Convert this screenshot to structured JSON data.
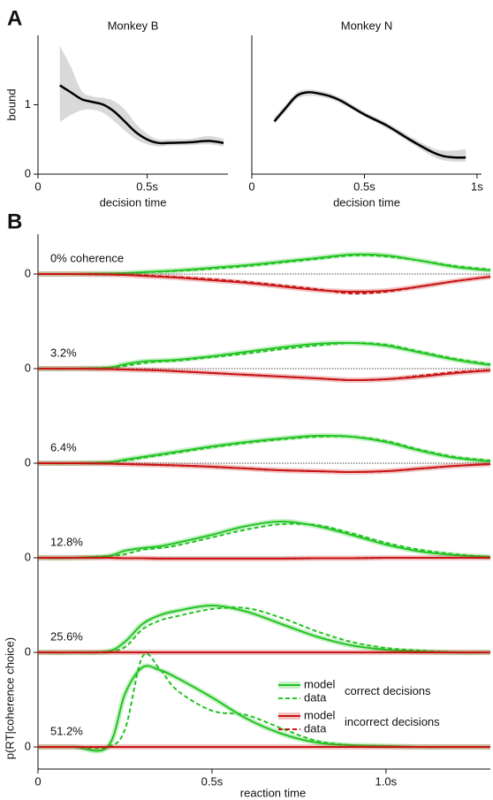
{
  "chart_data": [
    {
      "type": "line",
      "panel": "A",
      "title": "Monkey B",
      "xlabel": "decision time",
      "ylabel": "bound",
      "x": [
        0.1,
        0.15,
        0.2,
        0.25,
        0.3,
        0.35,
        0.4,
        0.45,
        0.5,
        0.55,
        0.6,
        0.7,
        0.78,
        0.85
      ],
      "values": [
        1.28,
        1.18,
        1.08,
        1.04,
        1.0,
        0.9,
        0.75,
        0.6,
        0.5,
        0.45,
        0.45,
        0.46,
        0.48,
        0.45
      ],
      "band_lower": [
        0.75,
        0.85,
        0.92,
        0.93,
        0.88,
        0.76,
        0.62,
        0.5,
        0.43,
        0.4,
        0.41,
        0.42,
        0.43,
        0.4
      ],
      "band_upper": [
        1.85,
        1.55,
        1.2,
        1.12,
        1.1,
        1.05,
        0.92,
        0.72,
        0.58,
        0.5,
        0.5,
        0.51,
        0.55,
        0.51
      ],
      "color": "#000000",
      "band_color": "#d9d9d9",
      "xlim": [
        0,
        0.87
      ],
      "ylim": [
        0,
        2
      ],
      "xticks": [
        0,
        {
          "value": 0.5,
          "label": "0.5s"
        }
      ],
      "yticks": [
        0,
        1
      ]
    },
    {
      "type": "line",
      "title": "Monkey N",
      "xlabel": "decision time",
      "x": [
        0.1,
        0.15,
        0.2,
        0.25,
        0.3,
        0.35,
        0.4,
        0.5,
        0.6,
        0.7,
        0.8,
        0.85,
        0.9,
        0.95
      ],
      "values": [
        0.76,
        0.95,
        1.13,
        1.18,
        1.16,
        1.12,
        1.05,
        0.86,
        0.7,
        0.5,
        0.32,
        0.26,
        0.24,
        0.24
      ],
      "band_lower": [
        0.72,
        0.9,
        1.08,
        1.13,
        1.12,
        1.08,
        1.01,
        0.83,
        0.66,
        0.46,
        0.26,
        0.2,
        0.18,
        0.18
      ],
      "band_upper": [
        0.82,
        1.0,
        1.18,
        1.22,
        1.2,
        1.16,
        1.09,
        0.9,
        0.74,
        0.55,
        0.38,
        0.34,
        0.34,
        0.36
      ],
      "color": "#000000",
      "band_color": "#d9d9d9",
      "xlim": [
        0,
        1.02
      ],
      "ylim": [
        0,
        2
      ],
      "xticks": [
        0,
        {
          "value": 0.5,
          "label": "0.5s"
        },
        {
          "value": 1,
          "label": "1s"
        }
      ],
      "yticks": []
    },
    {
      "type": "rt-stack",
      "panel": "B",
      "xlabel": "reaction time",
      "ylabel": "p(RT|coherence choice)",
      "x": [
        0,
        0.1,
        0.2,
        0.25,
        0.3,
        0.35,
        0.4,
        0.5,
        0.6,
        0.7,
        0.8,
        0.9,
        1.0,
        1.1,
        1.2,
        1.3
      ],
      "xlim": [
        0,
        1.3
      ],
      "xticks": [
        0,
        {
          "value": 0.5,
          "label": "0.5s"
        },
        {
          "value": 1,
          "label": "1.0s"
        }
      ],
      "yticks": [
        0
      ],
      "groups": [
        {
          "label": "correct decisions",
          "color": "#22c422",
          "model": "model",
          "data": "data"
        },
        {
          "label": "incorrect decisions",
          "color": "#c81414",
          "model": "model",
          "data": "data"
        }
      ],
      "rows": [
        {
          "label": "0% coherence",
          "correct_model": [
            0,
            0,
            0.05,
            0.1,
            0.2,
            0.3,
            0.4,
            0.7,
            1.0,
            1.4,
            1.8,
            2.2,
            2.1,
            1.5,
            0.8,
            0.4
          ],
          "correct_data": [
            0,
            0,
            0.05,
            0.1,
            0.2,
            0.25,
            0.35,
            0.6,
            0.9,
            1.3,
            1.7,
            2.1,
            2.0,
            1.5,
            0.9,
            0.5
          ],
          "incorrect_model": [
            0,
            0,
            0.05,
            0.1,
            0.2,
            0.3,
            0.4,
            0.7,
            1.0,
            1.4,
            1.8,
            2.0,
            1.9,
            1.4,
            0.8,
            0.3
          ],
          "incorrect_data": [
            0,
            0,
            0.05,
            0.1,
            0.15,
            0.25,
            0.35,
            0.6,
            0.9,
            1.3,
            1.7,
            2.2,
            2.0,
            1.4,
            0.8,
            0.3
          ]
        },
        {
          "label": "3.2%",
          "correct_model": [
            0,
            0,
            0.1,
            0.5,
            0.8,
            0.9,
            1.0,
            1.4,
            1.9,
            2.4,
            2.8,
            2.9,
            2.6,
            1.8,
            1.0,
            0.4
          ],
          "correct_data": [
            0,
            0,
            0.1,
            0.3,
            0.6,
            0.8,
            0.9,
            1.3,
            1.7,
            2.2,
            2.6,
            2.9,
            2.7,
            1.9,
            1.1,
            0.5
          ],
          "incorrect_model": [
            0,
            0,
            0.05,
            0.1,
            0.15,
            0.2,
            0.3,
            0.5,
            0.7,
            0.9,
            1.1,
            1.3,
            1.2,
            0.9,
            0.5,
            0.2
          ],
          "incorrect_data": [
            0,
            0,
            0.05,
            0.1,
            0.15,
            0.2,
            0.3,
            0.5,
            0.7,
            0.9,
            1.1,
            1.3,
            1.2,
            0.8,
            0.4,
            0.2
          ]
        },
        {
          "label": "6.4%",
          "correct_model": [
            0,
            0,
            0.1,
            0.4,
            0.7,
            1.0,
            1.3,
            1.9,
            2.4,
            2.8,
            3.1,
            3.0,
            2.4,
            1.4,
            0.6,
            0.2
          ],
          "correct_data": [
            0,
            0,
            0.1,
            0.3,
            0.6,
            0.9,
            1.2,
            1.8,
            2.3,
            2.7,
            3.0,
            3.0,
            2.5,
            1.5,
            0.7,
            0.3
          ],
          "incorrect_model": [
            0,
            0,
            0.05,
            0.1,
            0.15,
            0.2,
            0.25,
            0.4,
            0.6,
            0.8,
            0.9,
            1.0,
            0.9,
            0.6,
            0.3,
            0.1
          ],
          "incorrect_data": [
            0,
            0,
            0.05,
            0.1,
            0.15,
            0.2,
            0.25,
            0.4,
            0.6,
            0.8,
            0.9,
            1.0,
            0.9,
            0.6,
            0.3,
            0.1
          ]
        },
        {
          "label": "12.8%",
          "correct_model": [
            0,
            0,
            0.2,
            0.8,
            1.1,
            1.3,
            1.7,
            2.6,
            3.6,
            4.1,
            3.6,
            2.6,
            1.5,
            0.7,
            0.3,
            0.1
          ],
          "correct_data": [
            0,
            0,
            0.2,
            0.4,
            0.9,
            1.1,
            1.4,
            2.3,
            3.2,
            3.8,
            3.7,
            2.8,
            1.7,
            0.9,
            0.4,
            0.1
          ],
          "incorrect_model": [
            0,
            0,
            0,
            0.05,
            0.05,
            0.1,
            0.1,
            0.1,
            0.1,
            0.1,
            0.05,
            0.05,
            0,
            0,
            0,
            0
          ],
          "incorrect_data": [
            0,
            0,
            0,
            0.05,
            0.05,
            0.1,
            0.1,
            0.1,
            0.1,
            0.1,
            0.05,
            0.05,
            0,
            0,
            0,
            0
          ]
        },
        {
          "label": "25.6%",
          "correct_model": [
            0,
            0,
            0.1,
            1.2,
            3.2,
            4.2,
            4.7,
            5.3,
            4.6,
            3.2,
            1.8,
            0.8,
            0.3,
            0.1,
            0,
            0
          ],
          "correct_data": [
            0,
            0,
            0.1,
            0.6,
            2.6,
            3.6,
            4.1,
            4.9,
            5.0,
            3.9,
            2.4,
            1.2,
            0.5,
            0.2,
            0,
            0
          ],
          "incorrect_model": [
            0,
            0,
            0,
            0,
            0,
            0,
            0,
            0,
            0,
            0,
            0,
            0,
            0,
            0,
            0,
            0
          ],
          "incorrect_data": [
            0,
            0,
            0,
            0,
            0,
            0,
            0,
            0,
            0,
            0,
            0,
            0,
            0,
            0,
            0,
            0
          ]
        },
        {
          "label": "51.2%",
          "correct_model": [
            0,
            0,
            0,
            6.0,
            9.0,
            8.7,
            7.8,
            5.6,
            3.2,
            1.5,
            0.5,
            0.2,
            0.1,
            0,
            0,
            0
          ],
          "correct_data": [
            0,
            0,
            0,
            2.0,
            10.2,
            8.8,
            6.4,
            4.1,
            3.6,
            2.1,
            0.7,
            0.2,
            0.1,
            0,
            0,
            0
          ],
          "incorrect_model": [
            0,
            0,
            0,
            0,
            0,
            0,
            0,
            0,
            0,
            0,
            0,
            0,
            0,
            0,
            0,
            0
          ],
          "incorrect_data": [
            0,
            0,
            0,
            0,
            0,
            0,
            0,
            0,
            0,
            0,
            0,
            0,
            0,
            0,
            0,
            0
          ]
        }
      ]
    }
  ]
}
